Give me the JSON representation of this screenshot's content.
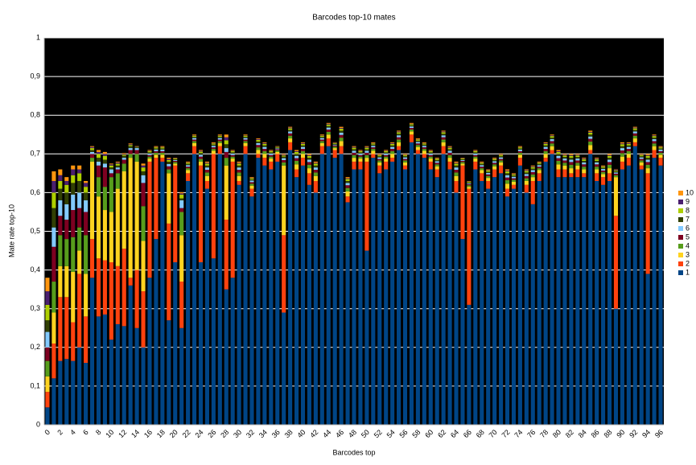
{
  "chart_data": {
    "type": "stacked_bar",
    "title": "Barcodes top-10 mates",
    "x_label": "Barcodes top",
    "y_label": "Mate rate top-10",
    "categories": [
      0,
      null,
      2,
      null,
      4,
      null,
      6,
      null,
      8,
      null,
      10,
      null,
      12,
      null,
      14,
      null,
      16,
      null,
      18,
      null,
      20,
      null,
      22,
      null,
      24,
      null,
      26,
      null,
      28,
      null,
      30,
      null,
      32,
      null,
      34,
      null,
      36,
      null,
      38,
      null,
      40,
      null,
      42,
      null,
      44,
      null,
      46,
      null,
      48,
      null,
      50,
      null,
      52,
      null,
      54,
      null,
      56,
      null,
      58,
      null,
      60,
      null,
      62,
      null,
      64,
      null,
      66,
      null,
      68,
      null,
      70,
      null,
      72,
      null,
      74,
      null,
      76,
      null,
      78,
      null,
      80,
      null,
      82,
      null,
      84,
      null,
      86,
      null,
      88,
      null,
      90,
      null,
      92,
      null,
      94,
      null,
      96
    ],
    "ylim": [
      0,
      1
    ],
    "yticks": [
      0,
      {
        "value": 0.1,
        "label": "0,1"
      },
      {
        "value": 0.2,
        "label": "0,2"
      },
      {
        "value": 0.3,
        "label": "0,3"
      },
      {
        "value": 0.4,
        "label": "0,4"
      },
      {
        "value": 0.5,
        "label": "0,5"
      },
      {
        "value": 0.6,
        "label": "0,6"
      },
      {
        "value": 0.7,
        "label": "0,7"
      },
      {
        "value": 0.8,
        "label": "0,8"
      },
      {
        "value": 0.9,
        "label": "0,9"
      },
      1
    ],
    "grid": true,
    "background": "#000000",
    "legend": "right",
    "series": [
      {
        "name": "1",
        "color": "#004586",
        "values": [
          0.045,
          0.12,
          0.165,
          0.17,
          0.165,
          0.2,
          0.16,
          0.38,
          0.28,
          0.285,
          0.22,
          0.26,
          0.255,
          0.36,
          0.25,
          0.2,
          0.38,
          0.48,
          0.68,
          0.27,
          0.42,
          0.25,
          0.63,
          0.7,
          0.42,
          0.61,
          0.43,
          0.7,
          0.35,
          0.38,
          0.62,
          0.7,
          0.59,
          0.69,
          0.67,
          0.66,
          0.68,
          0.29,
          0.71,
          0.64,
          0.67,
          0.62,
          0.6,
          0.7,
          0.72,
          0.69,
          0.7,
          0.575,
          0.66,
          0.66,
          0.45,
          0.69,
          0.65,
          0.66,
          0.68,
          0.71,
          0.66,
          0.73,
          0.7,
          0.69,
          0.66,
          0.64,
          0.7,
          0.66,
          0.6,
          0.48,
          0.31,
          0.66,
          0.63,
          0.61,
          0.64,
          0.65,
          0.59,
          0.61,
          0.67,
          0.6,
          0.57,
          0.63,
          0.68,
          0.7,
          0.64,
          0.64,
          0.64,
          0.64,
          0.64,
          0.7,
          0.63,
          0.62,
          0.63,
          0.3,
          0.66,
          0.67,
          0.72,
          0.66,
          0.39,
          0.69,
          0.67
        ]
      },
      {
        "name": "2",
        "color": "#ff420e",
        "values": [
          0.04,
          0.09,
          0.165,
          0.16,
          0.1,
          0.19,
          0.12,
          0.1,
          0.15,
          0.14,
          0.2,
          0.15,
          0.2,
          0.02,
          0.15,
          0.145,
          0.3,
          0.21,
          0.01,
          0.25,
          0.25,
          0.12,
          0.02,
          0.02,
          0.25,
          0.02,
          0.27,
          0.02,
          0.18,
          0.3,
          0.01,
          0.02,
          0.02,
          0.01,
          0.02,
          0.02,
          0.02,
          0.2,
          0.02,
          0.02,
          0.02,
          0.03,
          0.03,
          0.02,
          0.02,
          0.02,
          0.02,
          0.015,
          0.02,
          0.02,
          0.23,
          0.01,
          0.02,
          0.02,
          0.01,
          0.01,
          0.01,
          0.02,
          0.01,
          0.01,
          0.02,
          0.02,
          0.02,
          0.02,
          0.03,
          0.19,
          0.3,
          0.02,
          0.02,
          0.02,
          0.02,
          0.02,
          0.02,
          0.01,
          0.02,
          0.02,
          0.06,
          0.02,
          0.01,
          0.01,
          0.02,
          0.02,
          0.01,
          0.02,
          0.01,
          0.01,
          0.02,
          0.02,
          0.02,
          0.24,
          0.02,
          0.02,
          0.01,
          0.01,
          0.26,
          0.02,
          0.02
        ]
      },
      {
        "name": "3",
        "color": "#ffd320",
        "values": [
          0.04,
          0.08,
          0.08,
          0.08,
          0.13,
          0.06,
          0.11,
          0.2,
          0.16,
          0.13,
          0.13,
          0.2,
          0.2,
          0.31,
          0.28,
          0.13,
          0.008,
          0.008,
          0.008,
          0.13,
          0.005,
          0.12,
          0.008,
          0.008,
          0.01,
          0.013,
          0.008,
          0.008,
          0.14,
          0.008,
          0.013,
          0.008,
          0.008,
          0.01,
          0.01,
          0.008,
          0.005,
          0.18,
          0.01,
          0.013,
          0.01,
          0.013,
          0.013,
          0.008,
          0.01,
          0.005,
          0.013,
          0.013,
          0.01,
          0.008,
          0.01,
          0.008,
          0.008,
          0.008,
          0.01,
          0.01,
          0.008,
          0.008,
          0.008,
          0.008,
          0.008,
          0.008,
          0.01,
          0.01,
          0.013,
          0.005,
          0.005,
          0.008,
          0.008,
          0.008,
          0.008,
          0.008,
          0.013,
          0.008,
          0.008,
          0.01,
          0.01,
          0.008,
          0.01,
          0.01,
          0.013,
          0.01,
          0.013,
          0.01,
          0.01,
          0.013,
          0.01,
          0.008,
          0.013,
          0.1,
          0.013,
          0.01,
          0.01,
          0.008,
          0.013,
          0.01,
          0.008
        ]
      },
      {
        "name": "4",
        "color": "#579d1c",
        "values": [
          0.04,
          0.08,
          0.08,
          0.07,
          0.09,
          0.06,
          0.1,
          0.01,
          0.05,
          0.06,
          0.09,
          0.04,
          0.02,
          0.01,
          0.02,
          0.09,
          0.005,
          0.005,
          0.005,
          0.01,
          0.004,
          0.06,
          0.005,
          0.005,
          0.007,
          0.009,
          0.005,
          0.005,
          0.02,
          0.005,
          0.009,
          0.005,
          0.005,
          0.007,
          0.007,
          0.005,
          0.004,
          0.008,
          0.007,
          0.009,
          0.007,
          0.009,
          0.009,
          0.005,
          0.007,
          0.004,
          0.009,
          0.009,
          0.007,
          0.005,
          0.007,
          0.005,
          0.005,
          0.005,
          0.007,
          0.007,
          0.005,
          0.005,
          0.005,
          0.005,
          0.005,
          0.005,
          0.007,
          0.007,
          0.009,
          0.004,
          0.004,
          0.005,
          0.005,
          0.005,
          0.005,
          0.005,
          0.009,
          0.005,
          0.005,
          0.007,
          0.007,
          0.005,
          0.007,
          0.007,
          0.009,
          0.007,
          0.009,
          0.007,
          0.007,
          0.009,
          0.007,
          0.005,
          0.009,
          0.005,
          0.009,
          0.007,
          0.007,
          0.005,
          0.009,
          0.007,
          0.005
        ]
      },
      {
        "name": "5",
        "color": "#7e0021",
        "values": [
          0.035,
          0.09,
          0.05,
          0.05,
          0.07,
          0.05,
          0.06,
          0.01,
          0.03,
          0.05,
          0.01,
          0.01,
          0.01,
          0.01,
          0.01,
          0.06,
          0.004,
          0.004,
          0.004,
          0.008,
          0.003,
          0.01,
          0.004,
          0.004,
          0.006,
          0.007,
          0.004,
          0.004,
          0.015,
          0.004,
          0.007,
          0.004,
          0.004,
          0.006,
          0.006,
          0.004,
          0.003,
          0.006,
          0.006,
          0.007,
          0.006,
          0.007,
          0.007,
          0.004,
          0.006,
          0.003,
          0.007,
          0.007,
          0.006,
          0.004,
          0.006,
          0.004,
          0.004,
          0.004,
          0.006,
          0.006,
          0.004,
          0.004,
          0.004,
          0.004,
          0.004,
          0.004,
          0.006,
          0.006,
          0.007,
          0.003,
          0.003,
          0.004,
          0.004,
          0.004,
          0.004,
          0.004,
          0.007,
          0.004,
          0.004,
          0.006,
          0.006,
          0.004,
          0.006,
          0.006,
          0.007,
          0.006,
          0.007,
          0.006,
          0.006,
          0.007,
          0.006,
          0.004,
          0.007,
          0.004,
          0.007,
          0.006,
          0.006,
          0.004,
          0.007,
          0.006,
          0.004
        ]
      },
      {
        "name": "6",
        "color": "#83caff",
        "values": [
          0.04,
          0.05,
          0.04,
          0.04,
          0.04,
          0.04,
          0.03,
          0.005,
          0.01,
          0.01,
          0.01,
          0.005,
          0.005,
          0.005,
          0.005,
          0.02,
          0.004,
          0.004,
          0.004,
          0.006,
          0.002,
          0.02,
          0.004,
          0.004,
          0.005,
          0.006,
          0.004,
          0.004,
          0.01,
          0.004,
          0.006,
          0.004,
          0.004,
          0.005,
          0.005,
          0.004,
          0.002,
          0.005,
          0.005,
          0.006,
          0.005,
          0.006,
          0.006,
          0.004,
          0.005,
          0.002,
          0.006,
          0.006,
          0.005,
          0.004,
          0.005,
          0.004,
          0.004,
          0.004,
          0.005,
          0.005,
          0.004,
          0.004,
          0.004,
          0.004,
          0.004,
          0.004,
          0.005,
          0.005,
          0.006,
          0.002,
          0.002,
          0.004,
          0.004,
          0.004,
          0.004,
          0.004,
          0.006,
          0.004,
          0.004,
          0.005,
          0.005,
          0.004,
          0.005,
          0.005,
          0.006,
          0.005,
          0.006,
          0.005,
          0.005,
          0.006,
          0.005,
          0.004,
          0.006,
          0.003,
          0.006,
          0.005,
          0.005,
          0.004,
          0.006,
          0.005,
          0.004
        ]
      },
      {
        "name": "7",
        "color": "#314004",
        "values": [
          0.03,
          0.05,
          0.03,
          0.03,
          0.03,
          0.03,
          0.02,
          0.005,
          0.01,
          0.01,
          0.005,
          0.005,
          0.005,
          0.005,
          0.002,
          0.01,
          0.003,
          0.003,
          0.003,
          0.006,
          0.002,
          0.005,
          0.003,
          0.003,
          0.004,
          0.005,
          0.003,
          0.003,
          0.01,
          0.003,
          0.005,
          0.003,
          0.003,
          0.004,
          0.004,
          0.003,
          0.002,
          0.004,
          0.004,
          0.005,
          0.004,
          0.005,
          0.005,
          0.003,
          0.004,
          0.002,
          0.005,
          0.005,
          0.004,
          0.003,
          0.004,
          0.003,
          0.003,
          0.003,
          0.004,
          0.004,
          0.003,
          0.003,
          0.003,
          0.003,
          0.003,
          0.003,
          0.004,
          0.004,
          0.005,
          0.002,
          0.002,
          0.003,
          0.003,
          0.003,
          0.003,
          0.003,
          0.005,
          0.003,
          0.003,
          0.004,
          0.004,
          0.003,
          0.004,
          0.004,
          0.005,
          0.004,
          0.005,
          0.004,
          0.004,
          0.005,
          0.004,
          0.003,
          0.005,
          0.003,
          0.005,
          0.004,
          0.004,
          0.003,
          0.005,
          0.004,
          0.003
        ]
      },
      {
        "name": "8",
        "color": "#aecf00",
        "values": [
          0.04,
          0.04,
          0.02,
          0.02,
          0.02,
          0.02,
          0.015,
          0.005,
          0.01,
          0.01,
          0.005,
          0.005,
          0.003,
          0.003,
          0.001,
          0.01,
          0.003,
          0.003,
          0.003,
          0.004,
          0.002,
          0.01,
          0.003,
          0.003,
          0.004,
          0.005,
          0.003,
          0.003,
          0.01,
          0.003,
          0.005,
          0.003,
          0.003,
          0.004,
          0.004,
          0.003,
          0.002,
          0.003,
          0.004,
          0.005,
          0.004,
          0.005,
          0.005,
          0.003,
          0.004,
          0.002,
          0.005,
          0.005,
          0.004,
          0.003,
          0.004,
          0.003,
          0.003,
          0.003,
          0.004,
          0.004,
          0.003,
          0.003,
          0.003,
          0.003,
          0.003,
          0.003,
          0.004,
          0.004,
          0.005,
          0.002,
          0.002,
          0.003,
          0.003,
          0.003,
          0.003,
          0.003,
          0.005,
          0.003,
          0.003,
          0.004,
          0.004,
          0.003,
          0.004,
          0.004,
          0.005,
          0.004,
          0.005,
          0.004,
          0.004,
          0.005,
          0.004,
          0.003,
          0.005,
          0.002,
          0.005,
          0.004,
          0.004,
          0.003,
          0.005,
          0.004,
          0.003
        ]
      },
      {
        "name": "9",
        "color": "#4b1f6f",
        "values": [
          0.035,
          0.03,
          0.015,
          0.01,
          0.015,
          0.01,
          0.01,
          0.003,
          0.005,
          0.005,
          0.003,
          0.003,
          0.002,
          0.002,
          0.001,
          0.005,
          0.001,
          0.001,
          0.001,
          0.003,
          0.001,
          0.003,
          0.001,
          0.001,
          0.002,
          0.002,
          0.001,
          0.001,
          0.008,
          0.001,
          0.002,
          0.001,
          0.001,
          0.002,
          0.002,
          0.001,
          0.001,
          0.002,
          0.002,
          0.002,
          0.002,
          0.002,
          0.002,
          0.001,
          0.002,
          0.001,
          0.002,
          0.002,
          0.002,
          0.001,
          0.002,
          0.001,
          0.001,
          0.001,
          0.002,
          0.002,
          0.001,
          0.001,
          0.001,
          0.001,
          0.001,
          0.001,
          0.002,
          0.002,
          0.002,
          0.001,
          0.001,
          0.001,
          0.001,
          0.001,
          0.001,
          0.001,
          0.002,
          0.001,
          0.001,
          0.002,
          0.002,
          0.001,
          0.002,
          0.002,
          0.002,
          0.002,
          0.002,
          0.002,
          0.002,
          0.002,
          0.002,
          0.001,
          0.002,
          0.002,
          0.002,
          0.002,
          0.002,
          0.001,
          0.002,
          0.002,
          0.001
        ]
      },
      {
        "name": "10",
        "color": "#ff950e",
        "values": [
          0.035,
          0.025,
          0.015,
          0.01,
          0.01,
          0.01,
          0.005,
          0.002,
          0.005,
          0.005,
          0.002,
          0.002,
          0.002,
          0.002,
          0.001,
          0.005,
          0.002,
          0.002,
          0.002,
          0.003,
          0.001,
          0.003,
          0.002,
          0.002,
          0.002,
          0.003,
          0.002,
          0.002,
          0.007,
          0.002,
          0.003,
          0.002,
          0.002,
          0.002,
          0.002,
          0.002,
          0.001,
          0.002,
          0.002,
          0.003,
          0.002,
          0.003,
          0.003,
          0.002,
          0.002,
          0.001,
          0.003,
          0.003,
          0.002,
          0.002,
          0.002,
          0.002,
          0.002,
          0.002,
          0.002,
          0.002,
          0.002,
          0.002,
          0.002,
          0.002,
          0.002,
          0.002,
          0.002,
          0.002,
          0.003,
          0.001,
          0.001,
          0.002,
          0.002,
          0.002,
          0.002,
          0.002,
          0.003,
          0.002,
          0.002,
          0.002,
          0.002,
          0.002,
          0.002,
          0.002,
          0.003,
          0.002,
          0.003,
          0.002,
          0.002,
          0.003,
          0.002,
          0.002,
          0.003,
          0.001,
          0.003,
          0.002,
          0.002,
          0.002,
          0.003,
          0.002,
          0.002
        ]
      }
    ]
  }
}
